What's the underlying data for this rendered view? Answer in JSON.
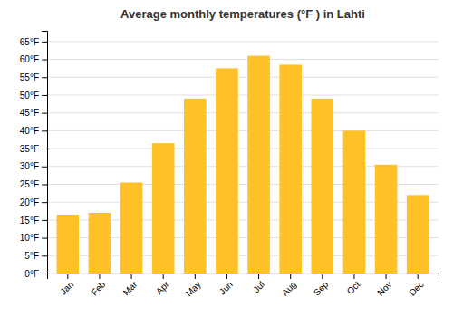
{
  "chart_data": {
    "type": "bar",
    "title": "Average monthly temperatures (°F ) in Lahti",
    "categories": [
      "Jan",
      "Feb",
      "Mar",
      "Apr",
      "May",
      "Jun",
      "Jul",
      "Aug",
      "Sep",
      "Oct",
      "Nov",
      "Dec"
    ],
    "values": [
      16.5,
      17.0,
      25.5,
      36.5,
      49.0,
      57.5,
      61.0,
      58.5,
      49.0,
      40.0,
      30.5,
      22.0
    ],
    "color": "#FFC125",
    "ylim": [
      0,
      68
    ],
    "yticks": [
      {
        "value": 0,
        "label": "0°F"
      },
      {
        "value": 5,
        "label": "5°F"
      },
      {
        "value": 10,
        "label": "10°F"
      },
      {
        "value": 15,
        "label": "15°F"
      },
      {
        "value": 20,
        "label": "20°F"
      },
      {
        "value": 25,
        "label": "25°F"
      },
      {
        "value": 30,
        "label": "30°F"
      },
      {
        "value": 35,
        "label": "35°F"
      },
      {
        "value": 40,
        "label": "40°F"
      },
      {
        "value": 45,
        "label": "45°F"
      },
      {
        "value": 50,
        "label": "50°F"
      },
      {
        "value": 55,
        "label": "55°F"
      },
      {
        "value": 60,
        "label": "60°F"
      },
      {
        "value": 65,
        "label": "65°F"
      }
    ],
    "grid": true
  }
}
